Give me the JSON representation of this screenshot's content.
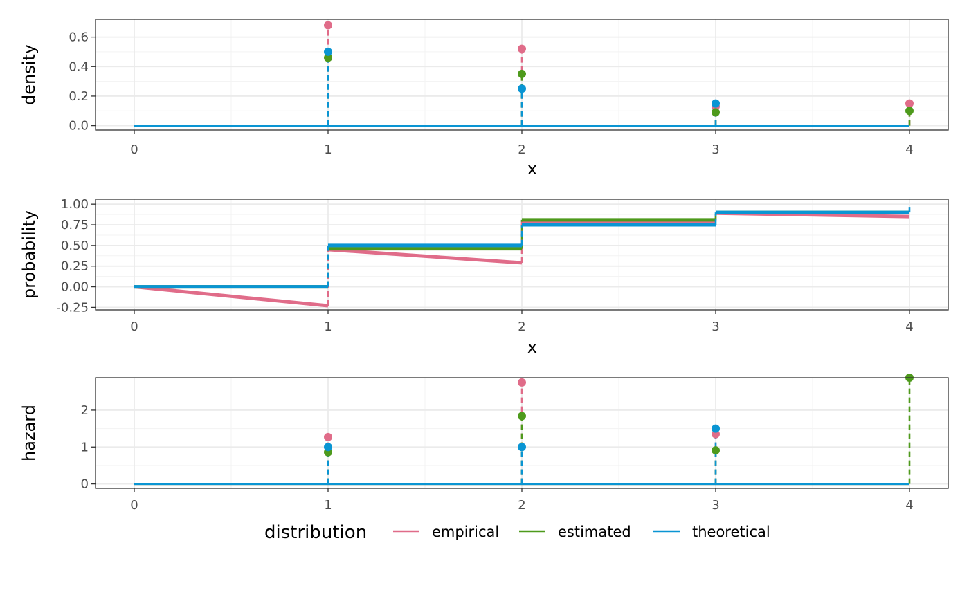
{
  "legend": {
    "title": "distribution",
    "position": "bottom",
    "entries": [
      {
        "key": "empirical",
        "label": "empirical",
        "color": "#E06C89"
      },
      {
        "key": "estimated",
        "label": "estimated",
        "color": "#4E9A1C"
      },
      {
        "key": "theoretical",
        "label": "theoretical",
        "color": "#0A95D3"
      }
    ]
  },
  "chart_data": [
    {
      "type": "scatter",
      "subtype": "lollipop",
      "xlabel": "x",
      "ylabel": "density",
      "xlim": [
        -0.2,
        4.2
      ],
      "ylim": [
        -0.03,
        0.72
      ],
      "x_ticks": [
        0,
        1,
        2,
        3,
        4
      ],
      "y_ticks": [
        0.0,
        0.2,
        0.4,
        0.6
      ],
      "y_tick_labels": [
        "0.0",
        "0.2",
        "0.4",
        "0.6"
      ],
      "grid": true,
      "x": [
        1,
        2,
        3,
        4
      ],
      "baseline_range": [
        0,
        4
      ],
      "series": [
        {
          "key": "empirical",
          "values": [
            0.68,
            0.52,
            0.13,
            0.15
          ]
        },
        {
          "key": "estimated",
          "values": [
            0.46,
            0.35,
            0.09,
            0.1
          ]
        },
        {
          "key": "theoretical",
          "values": [
            0.5,
            0.25,
            0.15,
            null
          ]
        }
      ]
    },
    {
      "type": "line",
      "subtype": "step",
      "xlabel": "x",
      "ylabel": "probability",
      "xlim": [
        -0.2,
        4.2
      ],
      "ylim": [
        -0.28,
        1.06
      ],
      "x_ticks": [
        0,
        1,
        2,
        3,
        4
      ],
      "y_ticks": [
        -0.25,
        0.0,
        0.25,
        0.5,
        0.75,
        1.0
      ],
      "y_tick_labels": [
        "-0.25",
        "0.00",
        "0.25",
        "0.50",
        "0.75",
        "1.00"
      ],
      "grid": true,
      "series": [
        {
          "key": "empirical",
          "segments": [
            [
              [
                0,
                0.0
              ],
              [
                1,
                -0.23
              ]
            ],
            [
              [
                1,
                0.45
              ],
              [
                2,
                0.29
              ]
            ],
            [
              [
                2,
                0.79
              ],
              [
                3,
                0.79
              ]
            ],
            [
              [
                3,
                0.89
              ],
              [
                4,
                0.85
              ]
            ]
          ],
          "jumps": [
            1,
            2,
            3
          ]
        },
        {
          "key": "estimated",
          "segments": [
            [
              [
                0,
                0.0
              ],
              [
                1,
                0.0
              ]
            ],
            [
              [
                1,
                0.46
              ],
              [
                2,
                0.46
              ]
            ],
            [
              [
                2,
                0.81
              ],
              [
                3,
                0.81
              ]
            ],
            [
              [
                3,
                0.9
              ],
              [
                4,
                0.9
              ]
            ]
          ],
          "jumps": [
            1,
            2,
            3
          ]
        },
        {
          "key": "theoretical",
          "segments": [
            [
              [
                0,
                0.0
              ],
              [
                1,
                0.0
              ]
            ],
            [
              [
                1,
                0.5
              ],
              [
                2,
                0.5
              ]
            ],
            [
              [
                2,
                0.75
              ],
              [
                3,
                0.75
              ]
            ],
            [
              [
                3,
                0.9
              ],
              [
                4,
                0.9
              ]
            ]
          ],
          "jumps": [
            1,
            2,
            3,
            4
          ],
          "end_value": 1.0
        }
      ]
    },
    {
      "type": "scatter",
      "subtype": "lollipop",
      "xlabel": "",
      "ylabel": "hazard",
      "xlim": [
        -0.2,
        4.2
      ],
      "ylim": [
        -0.12,
        2.88
      ],
      "x_ticks": [
        0,
        1,
        2,
        3,
        4
      ],
      "y_ticks": [
        0,
        1,
        2
      ],
      "y_tick_labels": [
        "0",
        "1",
        "2"
      ],
      "grid": true,
      "x": [
        1,
        2,
        3,
        4
      ],
      "baseline_range": [
        0,
        4
      ],
      "series": [
        {
          "key": "empirical",
          "values": [
            1.27,
            2.75,
            1.35,
            null
          ]
        },
        {
          "key": "estimated",
          "values": [
            0.86,
            1.84,
            0.91,
            2.88
          ]
        },
        {
          "key": "theoretical",
          "values": [
            1.0,
            1.0,
            1.5,
            null
          ]
        }
      ]
    }
  ]
}
